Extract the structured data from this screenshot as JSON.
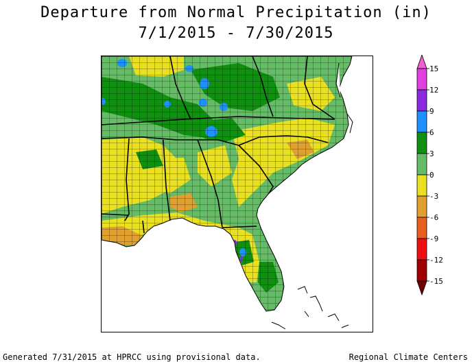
{
  "title": "Departure from Normal Precipitation (in)",
  "date_range": "7/1/2015 - 7/30/2015",
  "legend": {
    "ticks": [
      "15",
      "12",
      "9",
      "6",
      "3",
      "0",
      "-3",
      "-6",
      "-9",
      "-12",
      "-15"
    ],
    "bins": [
      {
        "range": "12 to 15",
        "color": "#e040e0"
      },
      {
        "range": "9 to 12",
        "color": "#8a2be2"
      },
      {
        "range": "6 to 9",
        "color": "#1e90ff"
      },
      {
        "range": "3 to 6",
        "color": "#109010"
      },
      {
        "range": "0 to 3",
        "color": "#66bb66"
      },
      {
        "range": "-3 to 0",
        "color": "#e8e020"
      },
      {
        "range": "-6 to -3",
        "color": "#e0a030"
      },
      {
        "range": "-9 to -6",
        "color": "#e86020"
      },
      {
        "range": "-12 to -9",
        "color": "#ee1010"
      },
      {
        "range": "-15 to -12",
        "color": "#a00000"
      }
    ]
  },
  "map": {
    "region": "Southeastern United States",
    "land_colors": {
      "green_dark": "#109010",
      "green_light": "#66bb66",
      "yellow": "#e8e020",
      "orange": "#e0a030",
      "blue": "#1e90ff",
      "purple": "#8a2be2",
      "county_lines": "#000000",
      "water": "#ffffff"
    }
  },
  "footer": {
    "left": "Generated 7/31/2015 at HPRCC using provisional data.",
    "right": "Regional Climate Centers"
  }
}
